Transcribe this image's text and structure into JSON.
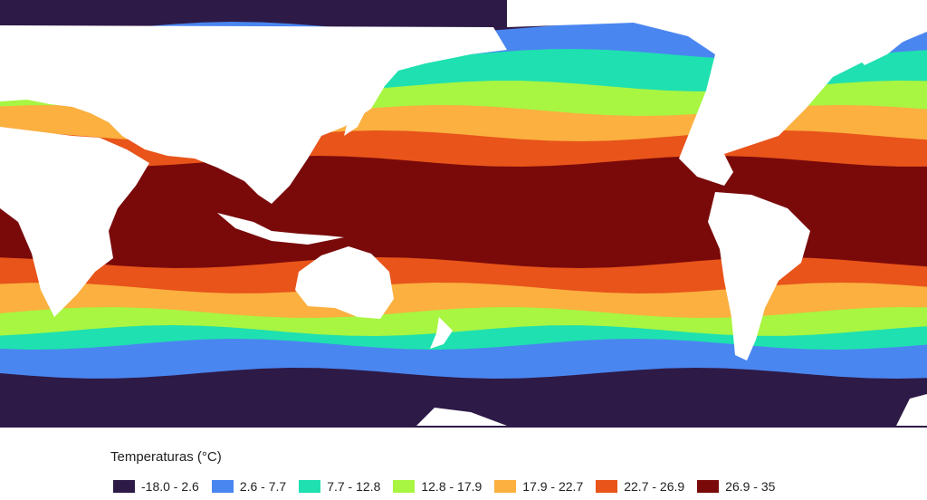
{
  "legend": {
    "title": "Temperaturas (°C)",
    "items": [
      {
        "label": "-18.0 - 2.6",
        "color": "#2e1a47"
      },
      {
        "label": "2.6 - 7.7",
        "color": "#4a86f0"
      },
      {
        "label": "7.7 - 12.8",
        "color": "#1fe0b0"
      },
      {
        "label": "12.8 - 17.9",
        "color": "#a8f542"
      },
      {
        "label": "17.9 - 22.7",
        "color": "#fbb040"
      },
      {
        "label": "22.7 - 26.9",
        "color": "#e8541a"
      },
      {
        "label": "26.9 - 35",
        "color": "#7a0a0a"
      }
    ]
  }
}
